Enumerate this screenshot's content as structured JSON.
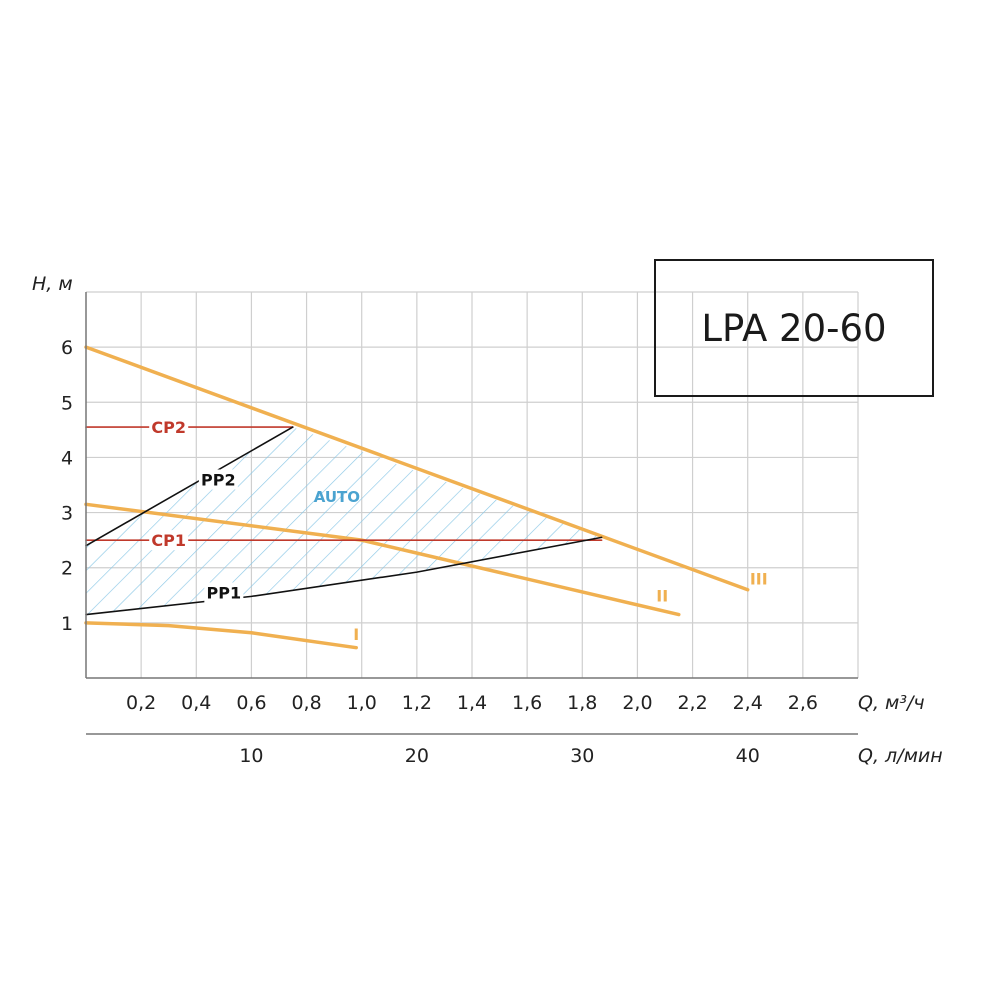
{
  "model": "LPA 20-60",
  "chart_data": {
    "type": "line",
    "title": "",
    "ylabel": "H, м",
    "xlabel": "Q, м³/ч",
    "xlabel_secondary": "Q, л/мин",
    "xlim": [
      0,
      2.8
    ],
    "ylim": [
      0,
      7
    ],
    "grid": true,
    "x_ticks": [
      "0,2",
      "0,4",
      "0,6",
      "0,8",
      "1,0",
      "1,2",
      "1,4",
      "1,6",
      "1,8",
      "2,0",
      "2,2",
      "2,4",
      "2,6"
    ],
    "x_tick_values": [
      0.2,
      0.4,
      0.6,
      0.8,
      1.0,
      1.2,
      1.4,
      1.6,
      1.8,
      2.0,
      2.2,
      2.4,
      2.6
    ],
    "y_ticks": [
      "1",
      "2",
      "3",
      "4",
      "5",
      "6"
    ],
    "y_tick_values": [
      1,
      2,
      3,
      4,
      5,
      6
    ],
    "x2_ticks": [
      "10",
      "20",
      "30",
      "40"
    ],
    "x2_tick_values": [
      10,
      20,
      30,
      40
    ],
    "series": [
      {
        "name": "I",
        "color": "#f0b050",
        "x": [
          0,
          0.3,
          0.6,
          0.98
        ],
        "y": [
          1.0,
          0.95,
          0.82,
          0.55
        ]
      },
      {
        "name": "II",
        "color": "#f0b050",
        "x": [
          0,
          1.0,
          2.15
        ],
        "y": [
          3.15,
          2.5,
          1.15
        ]
      },
      {
        "name": "III",
        "color": "#f0b050",
        "x": [
          0,
          2.4
        ],
        "y": [
          6.0,
          1.6
        ]
      },
      {
        "name": "CP2",
        "color": "#c0392b",
        "x": [
          0,
          0.75
        ],
        "y": [
          4.55,
          4.55
        ]
      },
      {
        "name": "CP1",
        "color": "#c0392b",
        "x": [
          0,
          1.87
        ],
        "y": [
          2.5,
          2.5
        ]
      },
      {
        "name": "PP2",
        "color": "#111111",
        "x": [
          0,
          0.75
        ],
        "y": [
          2.4,
          4.55
        ]
      },
      {
        "name": "PP1",
        "color": "#111111",
        "x": [
          0,
          0.6,
          1.2,
          1.87
        ],
        "y": [
          1.15,
          1.48,
          1.92,
          2.55
        ]
      }
    ],
    "areas": [
      {
        "name": "AUTO",
        "color": "#6cb4d8",
        "x": [
          0,
          0.75,
          1.87,
          1.2,
          0.6,
          0
        ],
        "y": [
          2.4,
          4.55,
          2.55,
          1.92,
          1.48,
          1.15
        ]
      }
    ],
    "annotations": [
      {
        "text": "CP2",
        "x": 0.3,
        "y": 4.55,
        "color": "#c0392b"
      },
      {
        "text": "CP1",
        "x": 0.3,
        "y": 2.5,
        "color": "#c0392b"
      },
      {
        "text": "PP2",
        "x": 0.48,
        "y": 3.6,
        "color": "#111111"
      },
      {
        "text": "PP1",
        "x": 0.5,
        "y": 1.55,
        "color": "#111111"
      },
      {
        "text": "AUTO",
        "x": 0.91,
        "y": 3.3,
        "color": "#4aa3d0"
      },
      {
        "text": "I",
        "x": 0.98,
        "y": 0.8,
        "color": "#f0b050"
      },
      {
        "text": "II",
        "x": 2.09,
        "y": 1.5,
        "color": "#f0b050"
      },
      {
        "text": "III",
        "x": 2.44,
        "y": 1.8,
        "color": "#f0b050"
      }
    ]
  }
}
